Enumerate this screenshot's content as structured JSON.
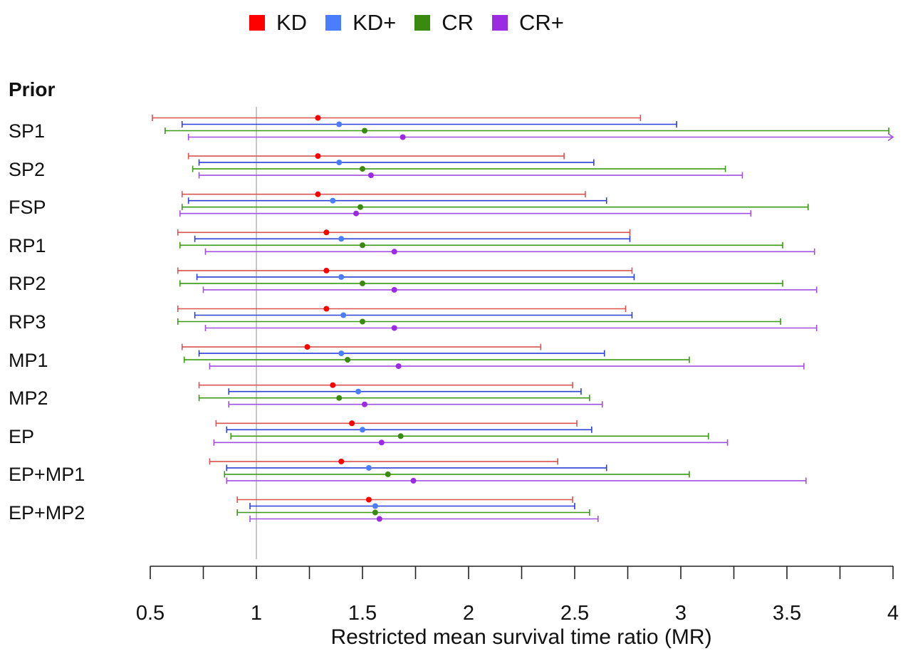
{
  "chart_data": {
    "type": "forest",
    "ylabel_header": "Prior",
    "xlabel": "Restricted mean survival time ratio (MR)",
    "xlim": [
      0.5,
      4
    ],
    "xticks": [
      0.5,
      0.75,
      1,
      1.25,
      1.5,
      1.75,
      2,
      2.25,
      2.5,
      2.75,
      3,
      3.25,
      3.5,
      3.75,
      4
    ],
    "xtick_labels": [
      "0.5",
      "",
      "1",
      "",
      "1.5",
      "",
      "2",
      "",
      "2.5",
      "",
      "3",
      "",
      "3.5",
      "",
      "4"
    ],
    "reference_line": 1,
    "legend_position": "top",
    "series": [
      {
        "name": "KD",
        "color": "#ff0000",
        "line_color": "#d9534f"
      },
      {
        "name": "KD+",
        "color": "#4a7dff",
        "line_color": "#2c3fd6"
      },
      {
        "name": "CR",
        "color": "#3a8a10",
        "line_color": "#3a9a14"
      },
      {
        "name": "CR+",
        "color": "#9a2be2",
        "line_color": "#a050e0"
      }
    ],
    "rows": [
      {
        "label": "SP1",
        "estimates": [
          {
            "est": 1.29,
            "lo": 0.51,
            "hi": 2.81
          },
          {
            "est": 1.39,
            "lo": 0.65,
            "hi": 2.98
          },
          {
            "est": 1.51,
            "lo": 0.57,
            "hi": 3.98
          },
          {
            "est": 1.69,
            "lo": 0.68,
            "hi": 4.0
          }
        ]
      },
      {
        "label": "SP2",
        "estimates": [
          {
            "est": 1.29,
            "lo": 0.68,
            "hi": 2.45
          },
          {
            "est": 1.39,
            "lo": 0.73,
            "hi": 2.59
          },
          {
            "est": 1.5,
            "lo": 0.7,
            "hi": 3.21
          },
          {
            "est": 1.54,
            "lo": 0.73,
            "hi": 3.29
          }
        ]
      },
      {
        "label": "FSP",
        "estimates": [
          {
            "est": 1.29,
            "lo": 0.65,
            "hi": 2.55
          },
          {
            "est": 1.36,
            "lo": 0.68,
            "hi": 2.65
          },
          {
            "est": 1.49,
            "lo": 0.65,
            "hi": 3.6
          },
          {
            "est": 1.47,
            "lo": 0.64,
            "hi": 3.33
          }
        ]
      },
      {
        "label": "RP1",
        "estimates": [
          {
            "est": 1.33,
            "lo": 0.63,
            "hi": 2.76
          },
          {
            "est": 1.4,
            "lo": 0.71,
            "hi": 2.76
          },
          {
            "est": 1.5,
            "lo": 0.64,
            "hi": 3.48
          },
          {
            "est": 1.65,
            "lo": 0.76,
            "hi": 3.63
          }
        ]
      },
      {
        "label": "RP2",
        "estimates": [
          {
            "est": 1.33,
            "lo": 0.63,
            "hi": 2.77
          },
          {
            "est": 1.4,
            "lo": 0.72,
            "hi": 2.78
          },
          {
            "est": 1.5,
            "lo": 0.64,
            "hi": 3.48
          },
          {
            "est": 1.65,
            "lo": 0.75,
            "hi": 3.64
          }
        ]
      },
      {
        "label": "RP3",
        "estimates": [
          {
            "est": 1.33,
            "lo": 0.63,
            "hi": 2.74
          },
          {
            "est": 1.41,
            "lo": 0.71,
            "hi": 2.77
          },
          {
            "est": 1.5,
            "lo": 0.63,
            "hi": 3.47
          },
          {
            "est": 1.65,
            "lo": 0.76,
            "hi": 3.64
          }
        ]
      },
      {
        "label": "MP1",
        "estimates": [
          {
            "est": 1.24,
            "lo": 0.65,
            "hi": 2.34
          },
          {
            "est": 1.4,
            "lo": 0.73,
            "hi": 2.64
          },
          {
            "est": 1.43,
            "lo": 0.66,
            "hi": 3.04
          },
          {
            "est": 1.67,
            "lo": 0.78,
            "hi": 3.58
          }
        ]
      },
      {
        "label": "MP2",
        "estimates": [
          {
            "est": 1.36,
            "lo": 0.73,
            "hi": 2.49
          },
          {
            "est": 1.48,
            "lo": 0.87,
            "hi": 2.53
          },
          {
            "est": 1.39,
            "lo": 0.73,
            "hi": 2.57
          },
          {
            "est": 1.51,
            "lo": 0.87,
            "hi": 2.63
          }
        ]
      },
      {
        "label": "EP",
        "estimates": [
          {
            "est": 1.45,
            "lo": 0.81,
            "hi": 2.51
          },
          {
            "est": 1.5,
            "lo": 0.86,
            "hi": 2.58
          },
          {
            "est": 1.68,
            "lo": 0.88,
            "hi": 3.13
          },
          {
            "est": 1.59,
            "lo": 0.8,
            "hi": 3.22
          }
        ]
      },
      {
        "label": "EP+MP1",
        "estimates": [
          {
            "est": 1.4,
            "lo": 0.78,
            "hi": 2.42
          },
          {
            "est": 1.53,
            "lo": 0.86,
            "hi": 2.65
          },
          {
            "est": 1.62,
            "lo": 0.85,
            "hi": 3.04
          },
          {
            "est": 1.74,
            "lo": 0.86,
            "hi": 3.59
          }
        ]
      },
      {
        "label": "EP+MP2",
        "estimates": [
          {
            "est": 1.53,
            "lo": 0.91,
            "hi": 2.49
          },
          {
            "est": 1.56,
            "lo": 0.97,
            "hi": 2.5
          },
          {
            "est": 1.56,
            "lo": 0.91,
            "hi": 2.57
          },
          {
            "est": 1.58,
            "lo": 0.97,
            "hi": 2.61
          }
        ]
      }
    ]
  }
}
